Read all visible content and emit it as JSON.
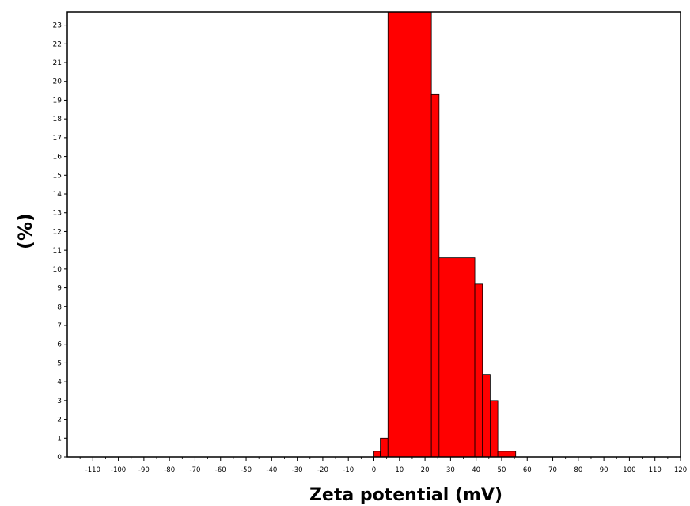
{
  "chart_data": {
    "type": "bar",
    "title": "",
    "xlabel": "Zeta potential (mV)",
    "ylabel": "(%)",
    "xlim": [
      -120,
      120
    ],
    "ylim": [
      0,
      23.7
    ],
    "x_ticks": [
      -110,
      -100,
      -90,
      -80,
      -70,
      -60,
      -50,
      -40,
      -30,
      -20,
      -10,
      0,
      10,
      20,
      30,
      40,
      50,
      60,
      70,
      80,
      90,
      100,
      110,
      120
    ],
    "y_ticks": [
      0,
      1,
      2,
      3,
      4,
      5,
      6,
      7,
      8,
      9,
      10,
      11,
      12,
      13,
      14,
      15,
      16,
      17,
      18,
      19,
      20,
      21,
      22,
      23
    ],
    "bar_color": "#ff0000",
    "grid": false,
    "bins": [
      {
        "x0": 0,
        "x1": 2.5,
        "value": 0.3
      },
      {
        "x0": 2.5,
        "x1": 5.5,
        "value": 1.0
      },
      {
        "x0": 5.5,
        "x1": 22.5,
        "value": 23.7
      },
      {
        "x0": 22.5,
        "x1": 25.5,
        "value": 19.3
      },
      {
        "x0": 25.5,
        "x1": 39.5,
        "value": 10.6
      },
      {
        "x0": 39.5,
        "x1": 42.5,
        "value": 9.2
      },
      {
        "x0": 42.5,
        "x1": 45.5,
        "value": 4.4
      },
      {
        "x0": 45.5,
        "x1": 48.5,
        "value": 3.0
      },
      {
        "x0": 48.5,
        "x1": 55.5,
        "value": 0.3
      }
    ]
  }
}
